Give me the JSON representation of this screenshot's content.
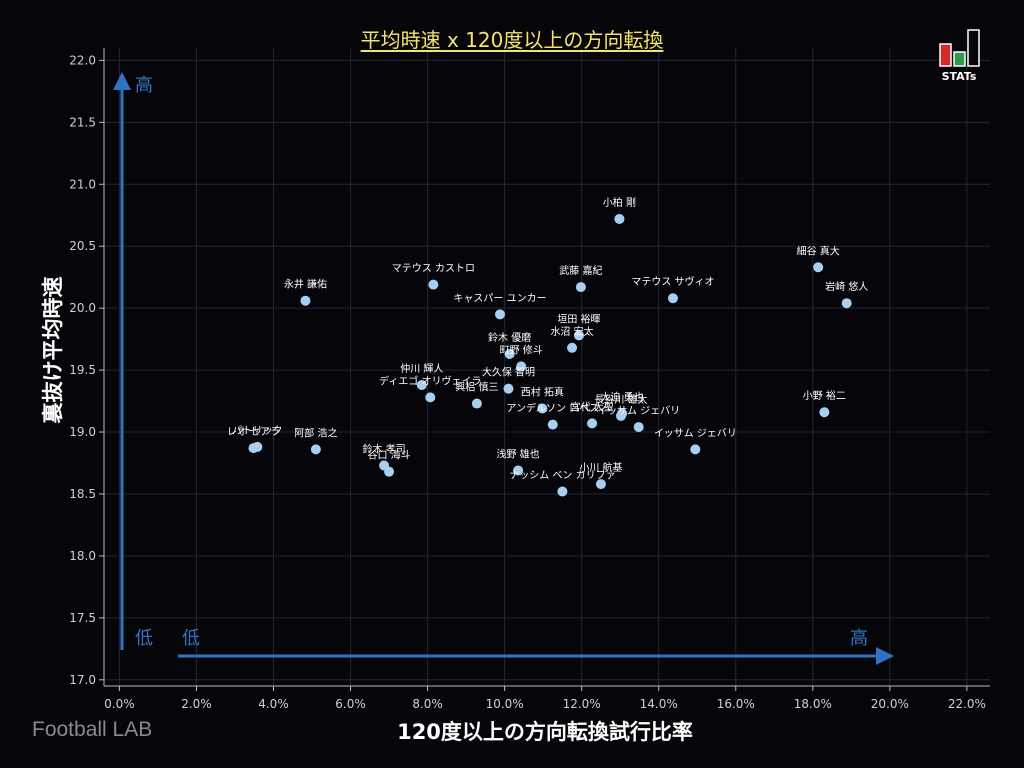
{
  "chart_data": {
    "type": "scatter",
    "title": "平均時速 x 120度以上の方向転換",
    "xlabel": "120度以上の方向転換試行比率",
    "ylabel": "裏抜け平均時速",
    "xlim": [
      -0.4,
      22.6
    ],
    "ylim": [
      16.95,
      22.1
    ],
    "x_ticks": [
      {
        "value": 0,
        "label": "0.0%"
      },
      {
        "value": 2,
        "label": "2.0%"
      },
      {
        "value": 4,
        "label": "4.0%"
      },
      {
        "value": 6,
        "label": "6.0%"
      },
      {
        "value": 8,
        "label": "8.0%"
      },
      {
        "value": 10,
        "label": "10.0%"
      },
      {
        "value": 12,
        "label": "12.0%"
      },
      {
        "value": 14,
        "label": "14.0%"
      },
      {
        "value": 16,
        "label": "16.0%"
      },
      {
        "value": 18,
        "label": "18.0%"
      },
      {
        "value": 20,
        "label": "20.0%"
      },
      {
        "value": 22,
        "label": "22.0%"
      }
    ],
    "y_ticks": [
      {
        "value": 17.0,
        "label": "17.0"
      },
      {
        "value": 17.5,
        "label": "17.5"
      },
      {
        "value": 18.0,
        "label": "18.0"
      },
      {
        "value": 18.5,
        "label": "18.5"
      },
      {
        "value": 19.0,
        "label": "19.0"
      },
      {
        "value": 19.5,
        "label": "19.5"
      },
      {
        "value": 20.0,
        "label": "20.0"
      },
      {
        "value": 20.5,
        "label": "20.5"
      },
      {
        "value": 21.0,
        "label": "21.0"
      },
      {
        "value": 21.5,
        "label": "21.5"
      },
      {
        "value": 22.0,
        "label": "22.0"
      }
    ],
    "grid": true,
    "annotations": {
      "y_high": "高",
      "y_low": "低",
      "x_low": "低",
      "x_high": "高"
    },
    "points": [
      {
        "name": "小柏 剛",
        "x": 12.98,
        "y": 20.72
      },
      {
        "name": "細谷 真大",
        "x": 18.14,
        "y": 20.33
      },
      {
        "name": "岩崎 悠人",
        "x": 18.88,
        "y": 20.04
      },
      {
        "name": "マテウス カストロ",
        "x": 8.15,
        "y": 20.19
      },
      {
        "name": "武藤 嘉紀",
        "x": 11.98,
        "y": 20.17
      },
      {
        "name": "マテウス サヴィオ",
        "x": 14.37,
        "y": 20.08
      },
      {
        "name": "永井 謙佑",
        "x": 4.83,
        "y": 20.06
      },
      {
        "name": "キャスパー ユンカー",
        "x": 9.88,
        "y": 19.95
      },
      {
        "name": "垣田 裕暉",
        "x": 11.93,
        "y": 19.78
      },
      {
        "name": "水沼 宏太",
        "x": 11.75,
        "y": 19.68
      },
      {
        "name": "鈴木 優磨",
        "x": 10.13,
        "y": 19.63
      },
      {
        "name": "町野 修斗",
        "x": 10.43,
        "y": 19.53
      },
      {
        "name": "大久保 智明",
        "x": 10.1,
        "y": 19.35
      },
      {
        "name": "仲川 輝人",
        "x": 7.85,
        "y": 19.38
      },
      {
        "name": "ディエゴ オリヴェイラ",
        "x": 8.07,
        "y": 19.28
      },
      {
        "name": "興梠 慎三",
        "x": 9.28,
        "y": 19.23
      },
      {
        "name": "西村 拓真",
        "x": 10.98,
        "y": 19.19
      },
      {
        "name": "大迫 勇也",
        "x": 13.05,
        "y": 19.15
      },
      {
        "name": "宮代 大聖",
        "x": 12.27,
        "y": 19.07
      },
      {
        "name": "長谷川 雄太",
        "x": 13.02,
        "y": 19.13
      },
      {
        "name": "アンデルソン ロペス",
        "x": 11.25,
        "y": 19.06
      },
      {
        "name": "イッサム ジェバリ",
        "x": 13.48,
        "y": 19.04
      },
      {
        "name": "小野 裕二",
        "x": 18.3,
        "y": 19.16
      },
      {
        "name": "イッサム ジェバリ",
        "x": 14.95,
        "y": 18.86
      },
      {
        "name": "レオ セアラ",
        "x": 3.48,
        "y": 18.87
      },
      {
        "name": "パトリック",
        "x": 3.58,
        "y": 18.88
      },
      {
        "name": "阿部 浩之",
        "x": 5.1,
        "y": 18.86
      },
      {
        "name": "鈴木 孝司",
        "x": 6.87,
        "y": 18.73
      },
      {
        "name": "谷口 海斗",
        "x": 7.0,
        "y": 18.68
      },
      {
        "name": "浅野 雄也",
        "x": 10.35,
        "y": 18.69
      },
      {
        "name": "小川 航基",
        "x": 12.5,
        "y": 18.58
      },
      {
        "name": "ナッシム ベン カリファ",
        "x": 11.5,
        "y": 18.52
      }
    ]
  },
  "brand": "Football LAB",
  "logo_text": "STATs",
  "colors": {
    "background": "#06060a",
    "grid": "#24243a",
    "point": "#a9cff0",
    "arrow": "#2f74c0",
    "title": "#f5e46b",
    "label": "#ffffff",
    "tick": "#d0d0d0"
  }
}
